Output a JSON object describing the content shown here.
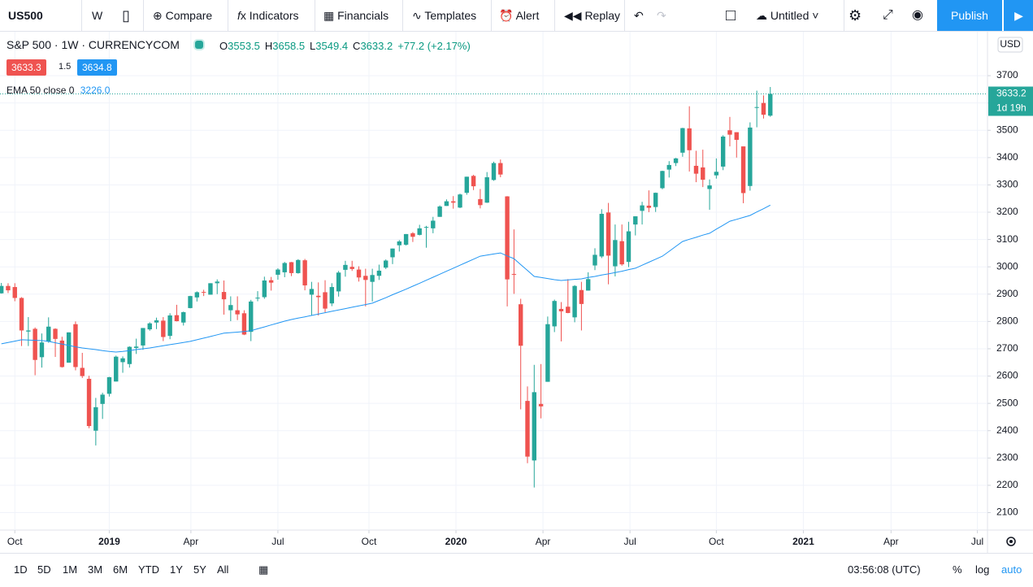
{
  "toolbar": {
    "symbol": "US500",
    "interval": "W",
    "buttons": [
      "Compare",
      "Indicators",
      "Financials",
      "Templates",
      "Alert",
      "Replay"
    ],
    "layout": "Untitled",
    "publish": "Publish"
  },
  "legend": {
    "title": "S&P 500 · 1W · CURRENCYCOM",
    "ohlc_labels": [
      "O",
      "H",
      "L",
      "C"
    ],
    "change": "+77.2 (+2.17%)",
    "bid": "3633.3",
    "spread": "1.5",
    "ask": "3634.8",
    "indicator_value": "3226.0"
  },
  "chart_data": {
    "type": "candlestick",
    "open": [
      2903,
      2930,
      2926,
      2886,
      2763,
      2773,
      2669,
      2726,
      2773,
      2730,
      2649,
      2790,
      2630,
      2590,
      2400,
      2498,
      2535,
      2580,
      2651,
      2644,
      2703,
      2712,
      2771,
      2796,
      2803,
      2747,
      2823,
      2796,
      2849,
      2888,
      2908,
      2898,
      2940,
      2908,
      2841,
      2841,
      2830,
      2762,
      2886,
      2889,
      2951,
      2971,
      2980,
      3017,
      2977,
      3024,
      2898,
      2894,
      2907,
      2866,
      2910,
      2989,
      3000,
      2990,
      2967,
      2945,
      2967,
      2997,
      3035,
      3079,
      3081,
      3123,
      3117,
      3143,
      3141,
      3183,
      3223,
      3240,
      3217,
      3271,
      3333,
      3248,
      3235,
      3318,
      3380,
      3258,
      2974,
      2863,
      2509,
      2291,
      2498,
      2579,
      2782,
      2846,
      2854,
      2815,
      2915,
      2913,
      3005,
      3038,
      3199,
      3002,
      3094,
      3018,
      3155,
      3205,
      3224,
      3219,
      3288,
      3356,
      3380,
      3418,
      3507,
      3370,
      3364,
      3285,
      3335,
      3367,
      3500,
      3493,
      3441,
      3296,
      3583,
      3600,
      3553.5
    ],
    "high": [
      2941,
      2940,
      2940,
      2889,
      2816,
      2778,
      2756,
      2815,
      2775,
      2744,
      2760,
      2800,
      2685,
      2601,
      2520,
      2539,
      2597,
      2675,
      2672,
      2709,
      2737,
      2776,
      2797,
      2814,
      2816,
      2830,
      2861,
      2836,
      2894,
      2910,
      2916,
      2940,
      2954,
      2950,
      2892,
      2892,
      2841,
      2879,
      2911,
      2964,
      2963,
      2995,
      3018,
      3018,
      3028,
      3029,
      2945,
      2943,
      2951,
      2940,
      2985,
      3022,
      3022,
      3002,
      2993,
      2993,
      3008,
      3027,
      3067,
      3098,
      3120,
      3127,
      3154,
      3150,
      3183,
      3225,
      3247,
      3259,
      3268,
      3330,
      3337,
      3285,
      3347,
      3385,
      3393,
      3259,
      3137,
      2883,
      2562,
      2641,
      2644,
      2818,
      2880,
      2871,
      2955,
      2933,
      2945,
      2980,
      3068,
      3211,
      3234,
      3155,
      3155,
      3165,
      3185,
      3238,
      3280,
      3272,
      3352,
      3387,
      3399,
      3509,
      3588,
      3425,
      3429,
      3320,
      3397,
      3482,
      3549,
      3493,
      3441,
      3529,
      3645,
      3628,
      3658.5
    ],
    "low": [
      2902,
      2904,
      2874,
      2710,
      2710,
      2603,
      2631,
      2722,
      2670,
      2631,
      2649,
      2621,
      2593,
      2409,
      2346,
      2443,
      2525,
      2580,
      2612,
      2631,
      2681,
      2696,
      2766,
      2772,
      2728,
      2735,
      2800,
      2785,
      2848,
      2873,
      2893,
      2898,
      2900,
      2825,
      2801,
      2805,
      2750,
      2728,
      2874,
      2883,
      2913,
      2953,
      2962,
      2966,
      2975,
      2914,
      2822,
      2822,
      2834,
      2856,
      2891,
      2964,
      2985,
      2946,
      2855,
      2873,
      2952,
      2992,
      3010,
      3056,
      3078,
      3091,
      3115,
      3070,
      3123,
      3183,
      3223,
      3213,
      3215,
      3264,
      3281,
      3214,
      3234,
      3315,
      3328,
      2855,
      2901,
      2478,
      2281,
      2192,
      2445,
      2579,
      2761,
      2727,
      2830,
      2797,
      2767,
      2913,
      2988,
      3032,
      2936,
      2965,
      3004,
      2999,
      3115,
      3155,
      3200,
      3201,
      3284,
      3327,
      3369,
      3403,
      3349,
      3310,
      3292,
      3209,
      3323,
      3354,
      3441,
      3400,
      3233,
      3279,
      3511,
      3543,
      3549.4
    ],
    "close": [
      2930,
      2914,
      2886,
      2767,
      2767,
      2659,
      2723,
      2781,
      2736,
      2633,
      2760,
      2633,
      2600,
      2417,
      2486,
      2532,
      2596,
      2671,
      2665,
      2707,
      2708,
      2776,
      2793,
      2804,
      2743,
      2822,
      2801,
      2834,
      2893,
      2907,
      2905,
      2940,
      2946,
      2881,
      2860,
      2826,
      2752,
      2873,
      2887,
      2950,
      2942,
      2990,
      3014,
      2977,
      3025,
      2932,
      2919,
      2889,
      2847,
      2926,
      2979,
      3007,
      2992,
      2961,
      2952,
      2970,
      2986,
      3023,
      3067,
      3093,
      3120,
      3110,
      3141,
      3146,
      3169,
      3221,
      3240,
      3235,
      3265,
      3330,
      3295,
      3226,
      3328,
      3380,
      3338,
      2954,
      2972,
      2711,
      2305,
      2541,
      2489,
      2790,
      2875,
      2837,
      2831,
      2930,
      2864,
      2955,
      3044,
      3194,
      3041,
      3098,
      3009,
      3130,
      3185,
      3225,
      3216,
      3271,
      3351,
      3373,
      3397,
      3508,
      3427,
      3341,
      3319,
      3298,
      3348,
      3477,
      3484,
      3465,
      3270,
      3510,
      3585,
      3557,
      3633.2
    ],
    "up_color": "#26a69a",
    "down_color": "#ef5350",
    "series": [
      {
        "name": "EMA 50 close 0",
        "color": "#2196f3",
        "values": [
          2718,
          2723,
          2728,
          2733,
          2732,
          2731,
          2730,
          2727,
          2722,
          2717,
          2712,
          2707,
          2703,
          2700,
          2697,
          2693,
          2690,
          2688,
          2690,
          2693,
          2697,
          2700,
          2703,
          2707,
          2711,
          2715,
          2719,
          2723,
          2727,
          2733,
          2739,
          2745,
          2751,
          2757,
          2759,
          2761,
          2763,
          2766,
          2773,
          2780,
          2787,
          2794,
          2801,
          2807,
          2812,
          2817,
          2822,
          2827,
          2832,
          2837,
          2842,
          2847,
          2852,
          2857,
          2862,
          2867,
          2877,
          2887,
          2898,
          2908,
          2918,
          2929,
          2940,
          2951,
          2962,
          2973,
          2984,
          2995,
          3006,
          3017,
          3028,
          3039,
          3043,
          3047,
          3051,
          3040,
          3030,
          3008,
          2987,
          2965,
          2961,
          2957,
          2953,
          2950,
          2952,
          2954,
          2956,
          2961,
          2965,
          2970,
          2974,
          2979,
          2984,
          2990,
          2995,
          3006,
          3017,
          3028,
          3039,
          3057,
          3075,
          3093,
          3101,
          3108,
          3116,
          3123,
          3138,
          3152,
          3167,
          3174,
          3181,
          3188,
          3201,
          3213,
          3226
        ]
      }
    ],
    "xlim": [
      -0.2,
      146.2
    ],
    "xticks": [
      {
        "value": 2,
        "label": "Oct"
      },
      {
        "value": 16,
        "label": "2019"
      },
      {
        "value": 28.1,
        "label": "Apr"
      },
      {
        "value": 41,
        "label": "Jul"
      },
      {
        "value": 54.5,
        "label": "Oct"
      },
      {
        "value": 67.4,
        "label": "2020"
      },
      {
        "value": 80.3,
        "label": "Apr"
      },
      {
        "value": 93.2,
        "label": "Jul"
      },
      {
        "value": 106,
        "label": "Oct"
      },
      {
        "value": 118.9,
        "label": "2021"
      },
      {
        "value": 131.9,
        "label": "Apr"
      },
      {
        "value": 144.7,
        "label": "Jul"
      }
    ],
    "ylim": [
      2036,
      3858
    ],
    "yticks": [
      2100,
      2200,
      2300,
      2400,
      2500,
      2600,
      2700,
      2800,
      2900,
      3000,
      3100,
      3200,
      3300,
      3400,
      3500,
      3600,
      3700
    ],
    "grid": true,
    "currency": "USD",
    "countdown": "1d 19h"
  },
  "bottom": {
    "ranges": [
      "1D",
      "5D",
      "1M",
      "3M",
      "6M",
      "YTD",
      "1Y",
      "5Y",
      "All"
    ],
    "clock": "03:56:08 (UTC)",
    "percent": "%",
    "log": "log",
    "auto": "auto"
  }
}
